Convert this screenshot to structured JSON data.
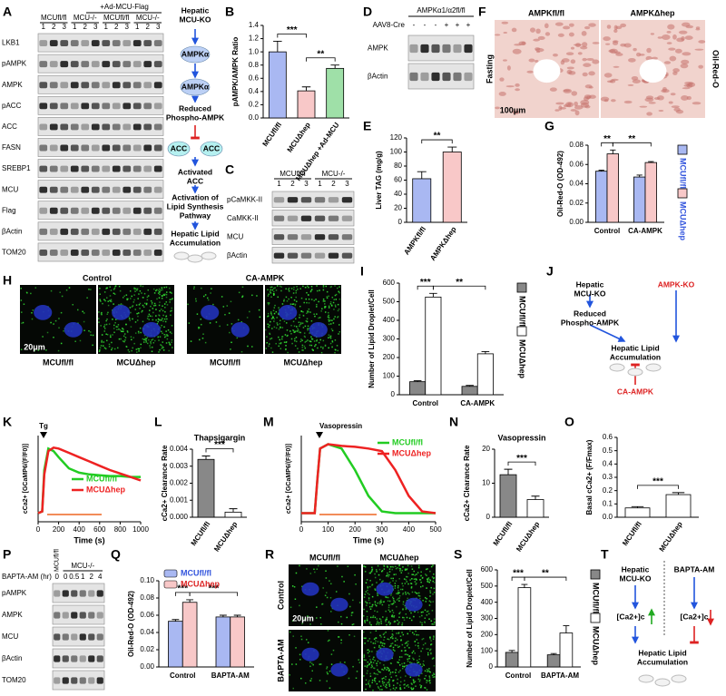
{
  "panels": [
    {
      "letter": "A",
      "type": "blot",
      "header": "+Ad-MCU-Flag",
      "groups": [
        "MCUfl/fl",
        "MCU-/-",
        "MCUfl/fl",
        "MCU-/-"
      ],
      "lanes": [
        "1",
        "2",
        "3",
        "1",
        "2",
        "3",
        "1",
        "2",
        "3",
        "1",
        "2",
        "3"
      ],
      "rows": [
        "LKB1",
        "pAMPK",
        "AMPK",
        "pACC",
        "ACC",
        "FASN",
        "SREBP1",
        "MCU",
        "Flag",
        "βActin",
        "TOM20"
      ]
    },
    {
      "type": "diagram",
      "labels": [
        [
          "Hepatic",
          "MCU-KO"
        ],
        [
          "AMPKα"
        ],
        [
          "AMPKα"
        ],
        [
          "Reduced",
          "Phospho-AMPK"
        ],
        [
          "ACC"
        ],
        [
          "ACC"
        ],
        [
          "Activated",
          "ACC"
        ],
        [
          "Activation of",
          "Lipid Synthesis",
          "Pathway"
        ],
        [
          "Hepatic Lipid",
          "Accumulation"
        ]
      ]
    },
    {
      "letter": "B",
      "type": "bar",
      "ylabel": "pAMPK/AMPK Ratio",
      "ylim": [
        0,
        1.4
      ],
      "yticks": [
        {
          "value": 0,
          "label": "0.0"
        },
        0.2,
        0.4,
        0.6,
        0.8,
        {
          "value": 1,
          "label": "1.0"
        },
        1.2,
        1.4
      ],
      "categories": [
        "MCUfl/fl",
        "MCUΔhep",
        "MCUΔhep +Ad-MCU"
      ],
      "series": [
        {
          "colors": [
            "#a9b8f2",
            "#f8c8c8",
            "#9fe0a8"
          ],
          "values": [
            1.0,
            0.41,
            0.75
          ],
          "errors": [
            0.16,
            0.06,
            0.05
          ]
        }
      ],
      "significance": [
        "***",
        "**"
      ]
    },
    {
      "letter": "C",
      "type": "blot",
      "groups": [
        "MCUfl/fl",
        "MCU-/-"
      ],
      "lanes": [
        "1",
        "2",
        "3",
        "1",
        "2",
        "3"
      ],
      "rows": [
        "pCaMKK-II",
        "CaMKK-II",
        "MCU",
        "βActin"
      ]
    },
    {
      "letter": "D",
      "type": "blot",
      "header": "AMPKα1/α2fl/fl",
      "lane_title": "AAV8-Cre",
      "lanes": [
        "-",
        "-",
        "-",
        "+",
        "+",
        "+"
      ],
      "rows": [
        "AMPK",
        "βActin"
      ]
    },
    {
      "letter": "E",
      "type": "bar",
      "ylabel": "Liver TAG (mg/g)",
      "ylim": [
        0,
        120
      ],
      "yticks": [
        0,
        20,
        40,
        60,
        80,
        100,
        120
      ],
      "categories": [
        "AMPKfl/fl",
        "AMPKΔhep"
      ],
      "series": [
        {
          "colors": [
            "#a9b8f2",
            "#f8c8c8"
          ],
          "values": [
            62,
            100
          ],
          "errors": [
            10,
            7
          ]
        }
      ],
      "significance": [
        "**"
      ]
    },
    {
      "letter": "F",
      "type": "image",
      "labels": [
        "AMPKfl/fl",
        "AMPKΔhep",
        "Fasting",
        "Oil-Red-O",
        "100μm"
      ]
    },
    {
      "letter": "G",
      "type": "bar",
      "ylabel": "Oil-Red-O (OD-492)",
      "ylim": [
        0,
        0.08
      ],
      "yticks": [
        {
          "value": 0,
          "label": "0.00"
        },
        0.02,
        0.04,
        0.06,
        0.08
      ],
      "categories": [
        "Control",
        "CA-AMPK"
      ],
      "series": [
        {
          "name": "MCUfl/fl",
          "color": "#a9b8f2",
          "values": [
            0.053,
            0.047
          ],
          "errors": [
            0.001,
            0.002
          ]
        },
        {
          "name": "MCUΔhep",
          "color": "#f8c8c8",
          "values": [
            0.071,
            0.062
          ],
          "errors": [
            0.004,
            0.001
          ]
        }
      ],
      "significance": [
        "**",
        "**"
      ]
    },
    {
      "letter": "H",
      "type": "image",
      "labels": [
        "Control",
        "CA-AMPK",
        "MCUfl/fl",
        "MCUΔhep",
        "MCUfl/fl",
        "MCUΔhep",
        "20μm"
      ]
    },
    {
      "letter": "I",
      "type": "bar",
      "ylabel": "Number of Lipid Droplet/Cell",
      "ylim": [
        0,
        600
      ],
      "yticks": [
        0,
        100,
        200,
        300,
        400,
        500,
        600
      ],
      "categories": [
        "Control",
        "CA-AMPK"
      ],
      "series": [
        {
          "name": "MCUfl/fl",
          "color": "#888888",
          "values": [
            70,
            45
          ],
          "errors": [
            5,
            5
          ]
        },
        {
          "name": "MCUΔhep",
          "color": "#ffffff",
          "values": [
            525,
            220
          ],
          "errors": [
            20,
            12
          ]
        }
      ],
      "significance": [
        "***",
        "**"
      ]
    },
    {
      "letter": "J",
      "type": "diagram",
      "labels": [
        [
          "Hepatic",
          "MCU-KO"
        ],
        [
          "AMPK-KO"
        ],
        [
          "Reduced",
          "Phospho-AMPK"
        ],
        [
          "Hepatic Lipid",
          "Accumulation"
        ],
        [
          "CA-AMPK"
        ]
      ]
    },
    {
      "letter": "K",
      "type": "line",
      "ylabel": "cCa2+ [GCaMP6/(F/F0)]",
      "xlabel": "Time (s)",
      "annotation": "Tg",
      "xlim": [
        0,
        1000
      ],
      "xticks": [
        0,
        200,
        400,
        600,
        800,
        1000
      ],
      "ylim": [
        0,
        1
      ],
      "x": [
        0,
        40,
        60,
        100,
        150,
        200,
        300,
        400,
        500,
        600,
        700,
        800,
        900,
        1000
      ],
      "series": [
        {
          "name": "MCUfl/fl",
          "color": "#22cc22",
          "values": [
            0.1,
            0.12,
            0.6,
            0.85,
            0.82,
            0.75,
            0.62,
            0.57,
            0.55,
            0.54,
            0.53,
            0.53,
            0.52,
            0.52
          ]
        },
        {
          "name": "MCUΔhep",
          "color": "#ee2222",
          "values": [
            0.1,
            0.12,
            0.55,
            0.82,
            0.86,
            0.85,
            0.8,
            0.75,
            0.7,
            0.65,
            0.6,
            0.56,
            0.52,
            0.48
          ]
        }
      ]
    },
    {
      "letter": "L",
      "type": "bar",
      "title": "Thapsigargin",
      "ylabel": "cCa2+ Clearance Rate",
      "ylim": [
        0,
        0.004
      ],
      "yticks": [
        {
          "value": 0,
          "label": "0.000"
        },
        0.001,
        0.002,
        0.003,
        0.004
      ],
      "categories": [
        "MCUfl/fl",
        "MCUΔhep"
      ],
      "series": [
        {
          "colors": [
            "#888888",
            "#ffffff"
          ],
          "values": [
            0.0034,
            0.0003
          ],
          "errors": [
            0.0002,
            0.0002
          ]
        }
      ],
      "significance": [
        "***"
      ]
    },
    {
      "letter": "M",
      "type": "line",
      "ylabel": "cCa2+ [GCaMP6/(F/F0)]",
      "xlabel": "Time (s)",
      "annotation": "Vasopressin",
      "xlim": [
        0,
        500
      ],
      "xticks": [
        0,
        100,
        200,
        300,
        400,
        500
      ],
      "ylim": [
        0,
        1
      ],
      "x": [
        0,
        50,
        60,
        70,
        100,
        150,
        200,
        250,
        300,
        350,
        400,
        450,
        500
      ],
      "series": [
        {
          "name": "MCUfl/fl",
          "color": "#22cc22",
          "values": [
            0.1,
            0.1,
            0.5,
            0.85,
            0.9,
            0.85,
            0.6,
            0.3,
            0.12,
            0.1,
            0.1,
            0.1,
            0.1
          ]
        },
        {
          "name": "MCUΔhep",
          "color": "#ee2222",
          "values": [
            0.1,
            0.1,
            0.5,
            0.85,
            0.9,
            0.88,
            0.87,
            0.85,
            0.82,
            0.6,
            0.3,
            0.12,
            0.1
          ]
        }
      ]
    },
    {
      "letter": "N",
      "type": "bar",
      "title": "Vasopressin",
      "ylabel": "cCa2+ Clearance Rate",
      "ylim": [
        0,
        20
      ],
      "yticks": [
        0,
        10,
        20
      ],
      "categories": [
        "MCUfl/fl",
        "MCUΔhep"
      ],
      "series": [
        {
          "colors": [
            "#888888",
            "#ffffff"
          ],
          "values": [
            12.5,
            5.2
          ],
          "errors": [
            1.6,
            1.0
          ]
        }
      ],
      "significance": [
        "***"
      ]
    },
    {
      "letter": "O",
      "type": "bar",
      "ylabel": "Basal cCa2+ (F/Fmax)",
      "ylim": [
        0,
        0.6
      ],
      "yticks": [
        {
          "value": 0,
          "label": "0.0"
        },
        0.1,
        0.2,
        0.3,
        0.4,
        0.5,
        0.6
      ],
      "categories": [
        "MCUfl/fl",
        "MCUΔhep"
      ],
      "series": [
        {
          "colors": [
            "#ffffff",
            "#ffffff"
          ],
          "values": [
            0.07,
            0.17
          ],
          "errors": [
            0.01,
            0.015
          ]
        }
      ],
      "significance": [
        "***"
      ]
    },
    {
      "letter": "P",
      "type": "blot",
      "lane_title": "BAPTA-AM (hr)",
      "groups": [
        "MCUfl/fl",
        "MCU-/-"
      ],
      "lanes": [
        "0",
        "0",
        "0.5",
        "1",
        "2",
        "4"
      ],
      "rows": [
        "pAMPK",
        "AMPK",
        "MCU",
        "βActin",
        "TOM20"
      ]
    },
    {
      "letter": "Q",
      "type": "bar",
      "ylabel": "Oil-Red-O (OD-492)",
      "ylim": [
        0,
        0.1
      ],
      "yticks": [
        {
          "value": 0,
          "label": "0.00"
        },
        0.02,
        0.04,
        0.06,
        0.08,
        {
          "value": 0.1,
          "label": "0.10"
        }
      ],
      "categories": [
        "Control",
        "BAPTA-AM"
      ],
      "series": [
        {
          "name": "MCUfl/fl",
          "color": "#a9b8f2",
          "values": [
            0.053,
            0.058
          ],
          "errors": [
            0.002,
            0.002
          ]
        },
        {
          "name": "MCUΔhep",
          "color": "#f8c8c8",
          "values": [
            0.075,
            0.058
          ],
          "errors": [
            0.003,
            0.002
          ]
        }
      ],
      "significance": [
        "***",
        "***"
      ]
    },
    {
      "letter": "R",
      "type": "image",
      "labels": [
        "MCUfl/fl",
        "MCUΔhep",
        "Control",
        "BAPTA-AM",
        "20μm"
      ]
    },
    {
      "letter": "S",
      "type": "bar",
      "ylabel": "Number of Lipid Droplet/Cell",
      "ylim": [
        0,
        600
      ],
      "yticks": [
        0,
        100,
        200,
        300,
        400,
        500,
        600
      ],
      "categories": [
        "Control",
        "BAPTA-AM"
      ],
      "series": [
        {
          "name": "MCUfl/fl",
          "color": "#888888",
          "values": [
            90,
            75
          ],
          "errors": [
            12,
            8
          ]
        },
        {
          "name": "MCUΔhep",
          "color": "#ffffff",
          "values": [
            490,
            210
          ],
          "errors": [
            20,
            45
          ]
        }
      ],
      "significance": [
        "***",
        "**"
      ]
    },
    {
      "letter": "T",
      "type": "diagram",
      "labels": [
        [
          "Hepatic",
          "MCU-KO"
        ],
        [
          "BAPTA-AM"
        ],
        [
          "[Ca2+]c"
        ],
        [
          "[Ca2+]c"
        ],
        [
          "Hepatic Lipid",
          "Accumulation"
        ]
      ]
    }
  ]
}
